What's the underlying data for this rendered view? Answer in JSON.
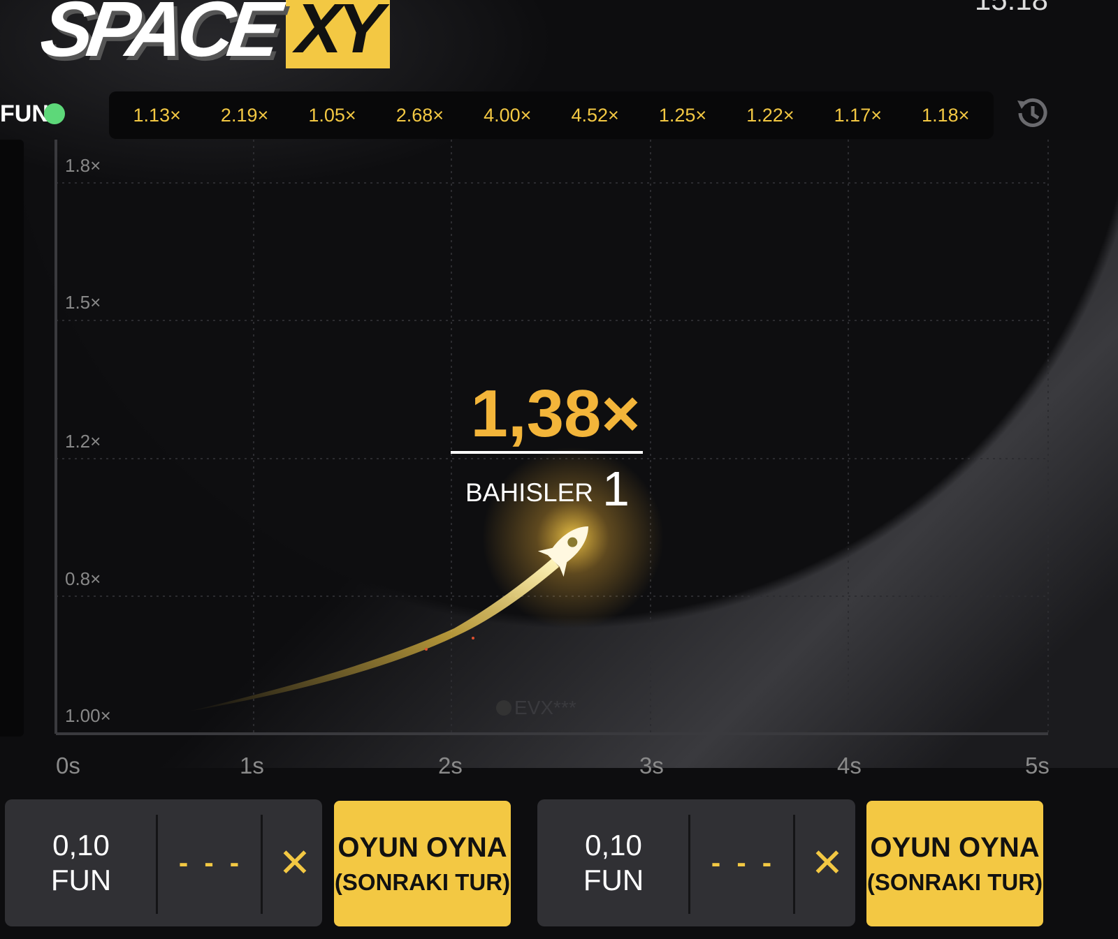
{
  "header": {
    "logo_text": "SPACE",
    "logo_accent": "XY",
    "clock": "15:18",
    "mode_label": "FUN",
    "status_color": "#5dd879"
  },
  "history": {
    "items": [
      "1.13×",
      "2.19×",
      "1.05×",
      "2.68×",
      "4.00×",
      "4.52×",
      "1.25×",
      "1.22×",
      "1.17×",
      "1.18×"
    ],
    "icon": "history-icon"
  },
  "graph": {
    "y_labels": [
      "1.8×",
      "1.5×",
      "1.2×",
      "0.8×",
      "1.00×"
    ],
    "x_labels": [
      "0s",
      "1s",
      "2s",
      "3s",
      "4s",
      "5s"
    ],
    "multiplier": "1,38×",
    "bets_label": "BAHISLER",
    "bets_count": "1",
    "player_tag": "EVX***"
  },
  "bet_panels": [
    {
      "amount": "0,10",
      "currency": "FUN",
      "auto_value": "- - -",
      "clear_icon": "close-icon",
      "play_line1": "OYUN OYNA",
      "play_line2": "(SONRAKI TUR)"
    },
    {
      "amount": "0,10",
      "currency": "FUN",
      "auto_value": "- - -",
      "clear_icon": "close-icon",
      "play_line1": "OYUN OYNA",
      "play_line2": "(SONRAKI TUR)"
    }
  ],
  "colors": {
    "accent": "#f3c843",
    "multiplier": "#f3b53a",
    "panel": "#303034",
    "background": "#0d0d0f"
  }
}
